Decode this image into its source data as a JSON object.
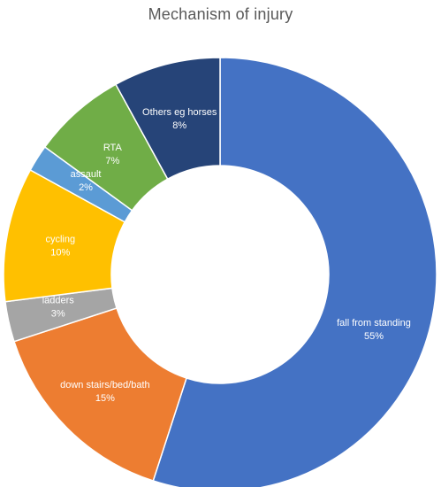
{
  "chart_data": {
    "type": "pie",
    "variant": "donut",
    "title": "Mechanism of injury",
    "start_angle_deg": 0,
    "direction": "clockwise",
    "slices": [
      {
        "label": "fall from standing",
        "value": 55,
        "value_label": "55%",
        "color": "#4472C4"
      },
      {
        "label": "down stairs/bed/bath",
        "value": 15,
        "value_label": "15%",
        "color": "#ED7D31"
      },
      {
        "label": "ladders",
        "value": 3,
        "value_label": "3%",
        "color": "#A5A5A5"
      },
      {
        "label": "cycling",
        "value": 10,
        "value_label": "10%",
        "color": "#FFC000"
      },
      {
        "label": "assault",
        "value": 2,
        "value_label": "2%",
        "color": "#5B9BD5"
      },
      {
        "label": "RTA",
        "value": 7,
        "value_label": "7%",
        "color": "#70AD47"
      },
      {
        "label": "Others eg horses",
        "value": 8,
        "value_label": "8%",
        "color": "#264478"
      }
    ],
    "legend": "none"
  }
}
